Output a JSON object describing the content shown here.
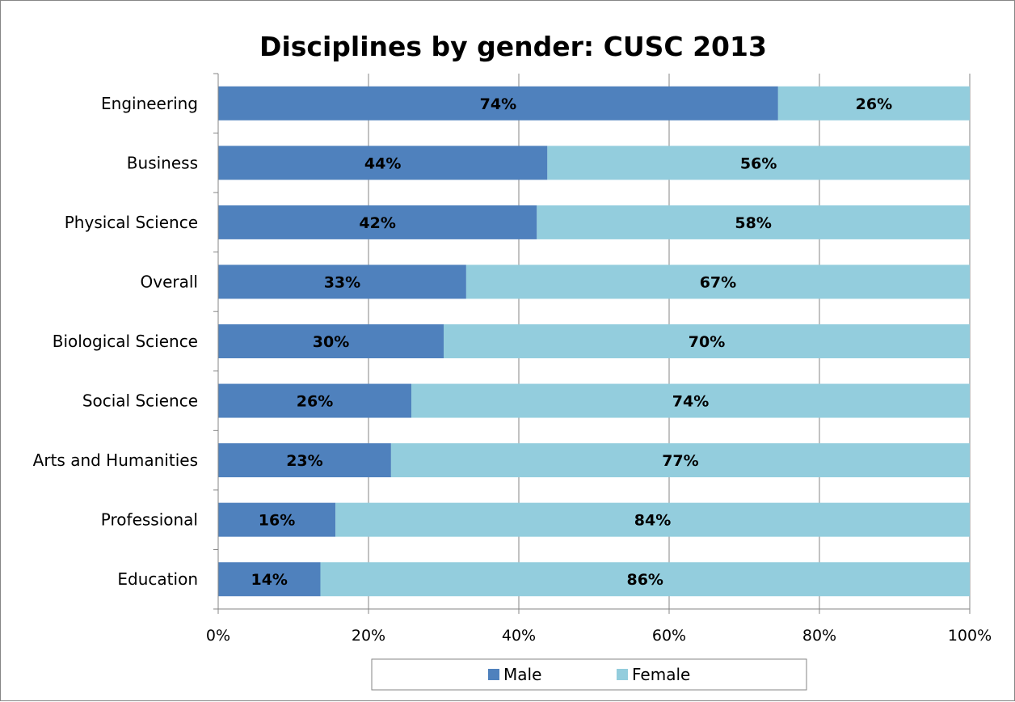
{
  "chart_data": {
    "type": "bar",
    "orientation": "horizontal",
    "stacked": true,
    "title": "Disciplines by gender: CUSC 2013",
    "categories": [
      "Engineering",
      "Business",
      "Physical Science",
      "Overall",
      "Biological Science",
      "Social Science",
      "Arts and Humanities",
      "Professional",
      "Education"
    ],
    "series": [
      {
        "name": "Male",
        "color": "#4f81bd",
        "values": [
          74.5,
          43.8,
          42.4,
          33.0,
          30.0,
          25.7,
          23.0,
          15.6,
          13.6
        ],
        "labels": [
          "74%",
          "44%",
          "42%",
          "33%",
          "30%",
          "26%",
          "23%",
          "16%",
          "14%"
        ]
      },
      {
        "name": "Female",
        "color": "#93cddd",
        "values": [
          25.5,
          56.2,
          57.6,
          67.0,
          70.0,
          74.3,
          77.0,
          84.4,
          86.4
        ],
        "labels": [
          "26%",
          "56%",
          "58%",
          "67%",
          "70%",
          "74%",
          "77%",
          "84%",
          "86%"
        ]
      }
    ],
    "xlim": [
      0,
      100
    ],
    "xticks": [
      "0%",
      "20%",
      "40%",
      "60%",
      "80%",
      "100%"
    ],
    "grid": true,
    "legend_position": "bottom"
  }
}
